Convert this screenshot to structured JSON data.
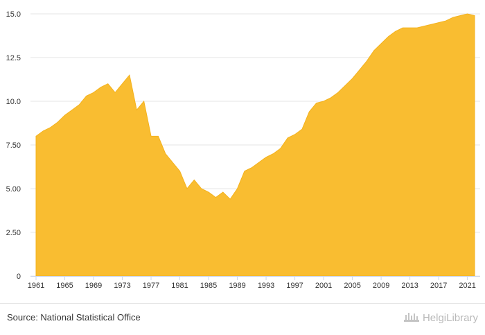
{
  "chart_data": {
    "type": "area",
    "x": [
      1961,
      1962,
      1963,
      1964,
      1965,
      1966,
      1967,
      1968,
      1969,
      1970,
      1971,
      1972,
      1973,
      1974,
      1975,
      1976,
      1977,
      1978,
      1979,
      1980,
      1981,
      1982,
      1983,
      1984,
      1985,
      1986,
      1987,
      1988,
      1989,
      1990,
      1991,
      1992,
      1993,
      1994,
      1995,
      1996,
      1997,
      1998,
      1999,
      2000,
      2001,
      2002,
      2003,
      2004,
      2005,
      2006,
      2007,
      2008,
      2009,
      2010,
      2011,
      2012,
      2013,
      2014,
      2015,
      2016,
      2017,
      2018,
      2019,
      2020,
      2021,
      2022
    ],
    "series": [
      {
        "values": [
          8.0,
          8.3,
          8.5,
          8.8,
          9.2,
          9.5,
          9.8,
          10.3,
          10.5,
          10.8,
          11.0,
          10.5,
          11.0,
          11.5,
          9.5,
          10.0,
          8.0,
          8.0,
          7.0,
          6.5,
          6.0,
          5.0,
          5.5,
          5.0,
          4.8,
          4.5,
          4.8,
          4.4,
          5.0,
          6.0,
          6.2,
          6.5,
          6.8,
          7.0,
          7.3,
          7.9,
          8.1,
          8.4,
          9.4,
          9.9,
          10.0,
          10.2,
          10.5,
          10.9,
          11.3,
          11.8,
          12.3,
          12.9,
          13.3,
          13.7,
          14.0,
          14.2,
          14.2,
          14.2,
          14.3,
          14.4,
          14.5,
          14.6,
          14.8,
          14.9,
          15.0,
          14.9
        ]
      }
    ],
    "xticks": [
      "1961",
      "1965",
      "1969",
      "1973",
      "1977",
      "1981",
      "1985",
      "1989",
      "1993",
      "1997",
      "2001",
      "2005",
      "2009",
      "2013",
      "2017",
      "2021"
    ],
    "yticks": [
      "0",
      "2.50",
      "5.00",
      "7.50",
      "10.0",
      "12.5",
      "15.0"
    ],
    "ylim": [
      0,
      15
    ],
    "color": "#f9bd31",
    "grid": true
  },
  "footer": {
    "source": "Source: National Statistical Office",
    "brand": "HelgiLibrary"
  }
}
